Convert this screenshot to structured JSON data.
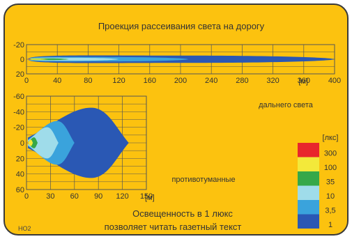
{
  "title": "Проекция рассеивания света на дорогу",
  "colors": {
    "background": "#fcc20f",
    "frame": "#3a3a3a",
    "grid": "#555555",
    "lux_300": "#e8262c",
    "lux_100": "#f3e93a",
    "lux_35": "#36a849",
    "lux_10": "#9fdcea",
    "lux_3_5": "#3aa3dc",
    "lux_1": "#2a58b4"
  },
  "chart_data": [
    {
      "type": "area",
      "name_label": "дальнего света",
      "x_unit_label": "[м]",
      "xlim": [
        0,
        400
      ],
      "ylim": [
        -20,
        20
      ],
      "x_ticks": [
        "0",
        "40",
        "80",
        "120",
        "160",
        "200",
        "240",
        "280",
        "320",
        "360",
        "400"
      ],
      "y_ticks": [
        "-20",
        "0",
        "20"
      ],
      "zones": [
        {
          "lux": "1",
          "reach_m": 400,
          "half_width_m": 5
        },
        {
          "lux": "3,5",
          "reach_m": 210,
          "half_width_m": 3
        },
        {
          "lux": "10",
          "reach_m": 120,
          "half_width_m": 2
        },
        {
          "lux": "35",
          "reach_m": 55,
          "half_width_m": 1.2
        },
        {
          "lux": "100",
          "reach_m": 28,
          "half_width_m": 0.7
        },
        {
          "lux": "300",
          "reach_m": 8,
          "half_width_m": 0.4
        }
      ]
    },
    {
      "type": "area",
      "name_label": "противотуманные",
      "x_unit_label": "[м]",
      "xlim": [
        0,
        150
      ],
      "ylim": [
        -60,
        60
      ],
      "x_ticks": [
        "0",
        "30",
        "60",
        "90",
        "120",
        "150"
      ],
      "y_ticks": [
        "-60",
        "-40",
        "-20",
        "0",
        "20",
        "40",
        "60"
      ],
      "zones": [
        {
          "lux": "1",
          "reach_m": 128,
          "half_width_m": 45
        },
        {
          "lux": "3,5",
          "reach_m": 60,
          "half_width_m": 28
        },
        {
          "lux": "10",
          "reach_m": 40,
          "half_width_m": 20
        },
        {
          "lux": "35",
          "reach_m": 14,
          "half_width_m": 7
        },
        {
          "lux": "100",
          "reach_m": 8,
          "half_width_m": 4
        },
        {
          "lux": "300",
          "reach_m": 2,
          "half_width_m": 2
        }
      ]
    }
  ],
  "legend": {
    "unit": "[лкс]",
    "entries": [
      {
        "label": "300",
        "color": "#e8262c"
      },
      {
        "label": "100",
        "color": "#f3e93a"
      },
      {
        "label": "35",
        "color": "#36a849"
      },
      {
        "label": "10",
        "color": "#9fdcea"
      },
      {
        "label": "3,5",
        "color": "#3aa3dc"
      },
      {
        "label": "1",
        "color": "#2a58b4"
      }
    ]
  },
  "note_line1": "Освещенность в 1 люкс",
  "note_line2": "позволяет читать газетный текст",
  "corner_tag": "НО2"
}
